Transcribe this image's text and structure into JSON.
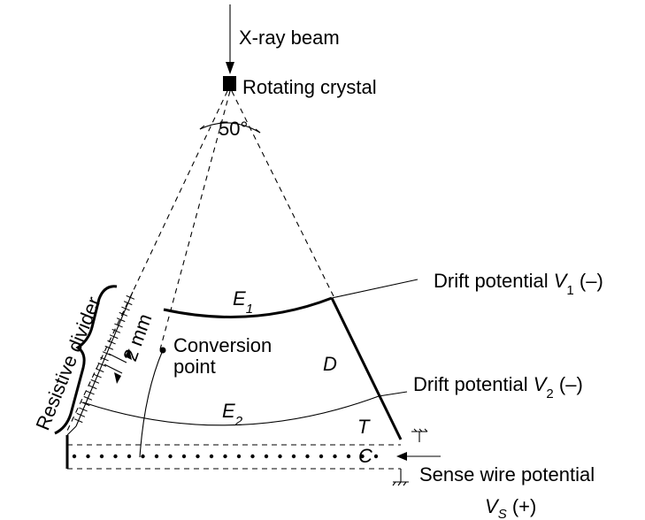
{
  "labels": {
    "beam": "X-ray beam",
    "crystal": "Rotating crystal",
    "angle": "50°",
    "divider": "Resistive divider",
    "two_mm": "2 mm",
    "conversion_1": "Conversion",
    "conversion_2": "point",
    "D": "D",
    "T": "T",
    "C": "C",
    "drift1_text": "Drift potential ",
    "drift1_var": "V",
    "drift1_sub": "1",
    "drift1_sign": " (–)",
    "drift2_text": "Drift potential ",
    "drift2_var": "V",
    "drift2_sub": "2",
    "drift2_sign": " (–)",
    "sense_text": "Sense wire potential",
    "vs_var": "V",
    "vs_sub": "S",
    "vs_sign": " (+)",
    "E1_var": "E",
    "E1_sub": "1",
    "E2_var": "E",
    "E2_sub": "2"
  }
}
